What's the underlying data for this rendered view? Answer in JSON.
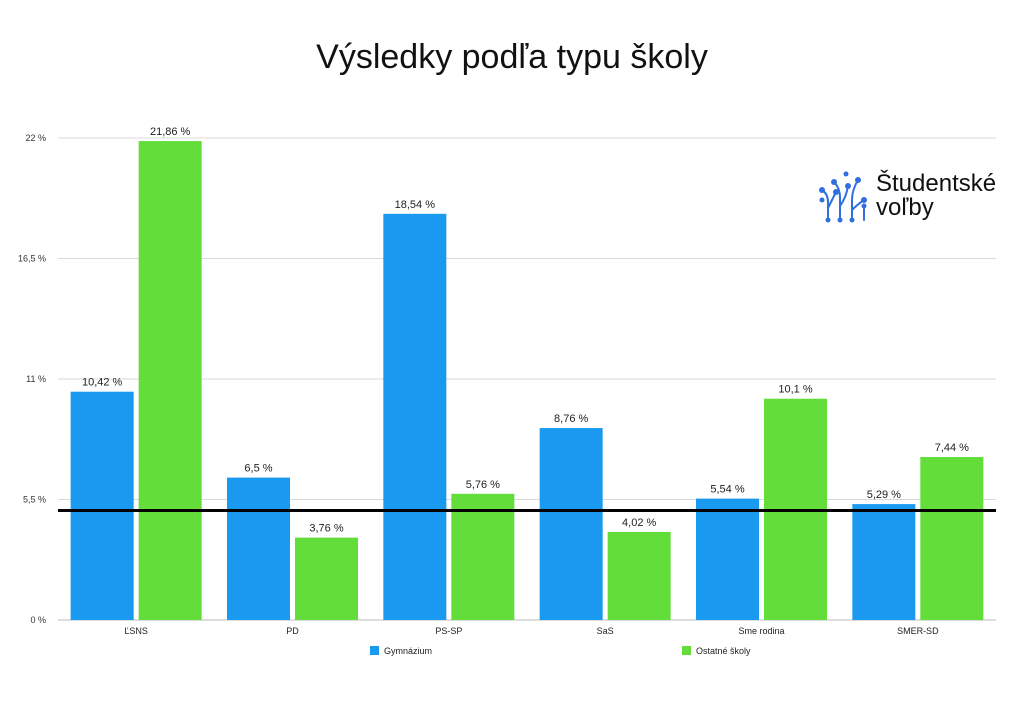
{
  "title": "Výsledky podľa typu školy",
  "logo": {
    "line1": "Študentské",
    "line2": "voľby",
    "icon": "branching-dots-icon",
    "icon_color": "#2f6fe0"
  },
  "colors": {
    "Gymnázium": "#1a99f0",
    "Ostatné školy": "#63dd3a",
    "threshold": "#000000",
    "grid": "#d9d9d9"
  },
  "chart_data": {
    "type": "bar",
    "categories": [
      "ĽSNS",
      "PD",
      "PS-SP",
      "SaS",
      "Sme rodina",
      "SMER-SD"
    ],
    "series": [
      {
        "name": "Gymnázium",
        "values": [
          10.42,
          6.5,
          18.54,
          8.76,
          5.54,
          5.29
        ],
        "labels": [
          "10,42 %",
          "6,5 %",
          "18,54 %",
          "8,76 %",
          "5,54 %",
          "5,29 %"
        ]
      },
      {
        "name": "Ostatné školy",
        "values": [
          21.86,
          3.76,
          5.76,
          4.02,
          10.1,
          7.44
        ],
        "labels": [
          "21,86 %",
          "3,76 %",
          "5,76 %",
          "4,02 %",
          "10,1 %",
          "7,44 %"
        ]
      }
    ],
    "ylim": [
      0,
      22
    ],
    "yticks": [
      0,
      5.5,
      11,
      16.5,
      22
    ],
    "ytick_labels": [
      "0 %",
      "5,5 %",
      "11 %",
      "16,5 %",
      "22 %"
    ],
    "threshold_line": 5,
    "grid": true,
    "legend_position": "bottom"
  }
}
